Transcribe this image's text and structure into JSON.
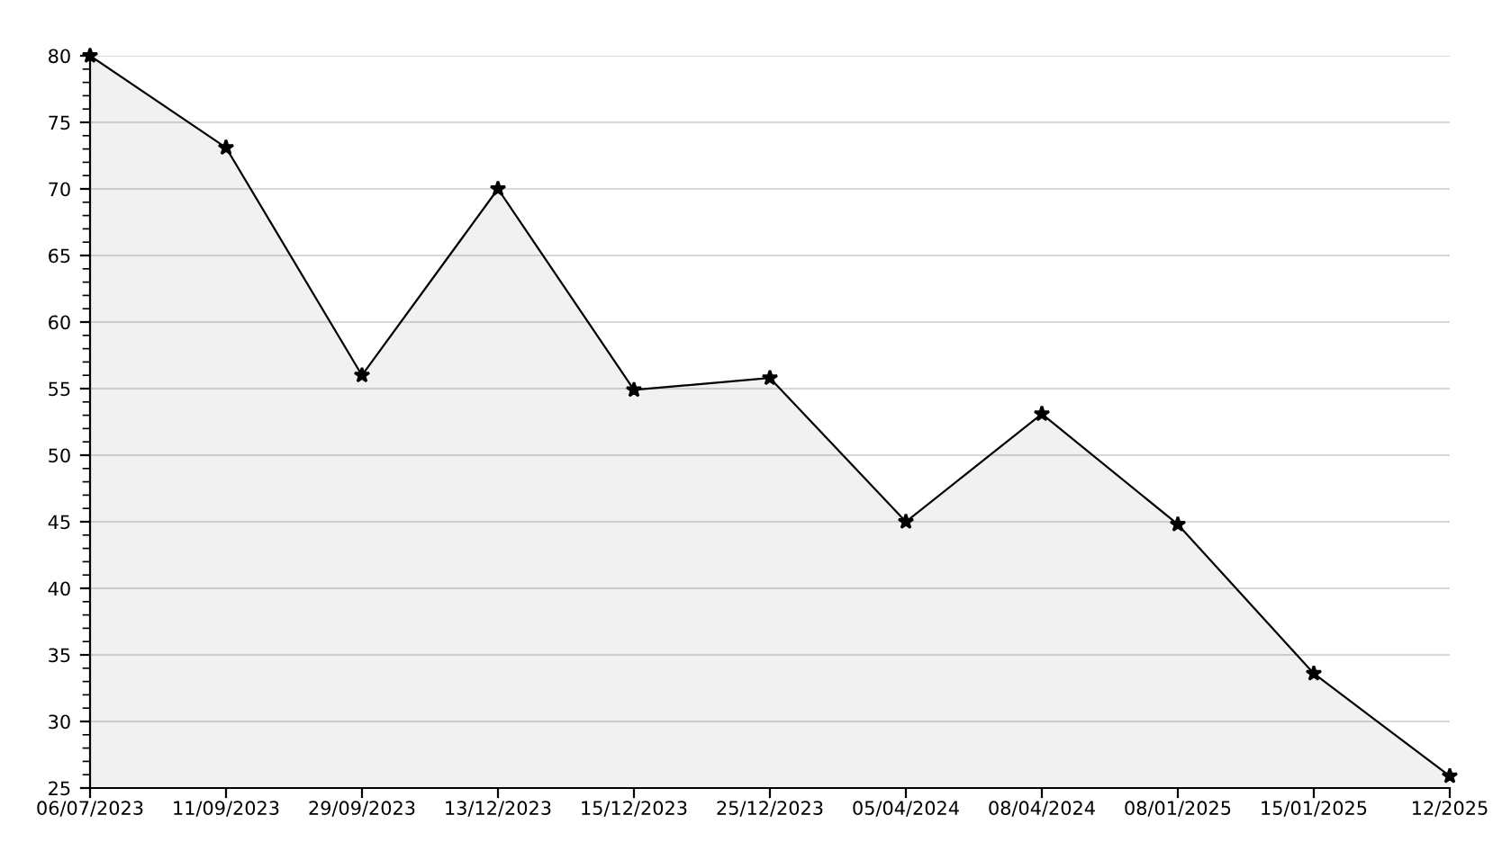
{
  "chart_data": {
    "type": "area",
    "categories": [
      "06/07/2023",
      "11/09/2023",
      "29/09/2023",
      "13/12/2023",
      "15/12/2023",
      "25/12/2023",
      "05/04/2024",
      "08/04/2024",
      "08/01/2025",
      "15/01/2025",
      "12/2025"
    ],
    "series": [
      {
        "color": "#000000",
        "values": [
          80,
          73.1,
          56,
          70,
          54.9,
          55.8,
          45,
          53.1,
          44.8,
          33.6,
          25.9
        ]
      }
    ],
    "ylim": [
      25,
      80
    ],
    "yticks": [
      25,
      30,
      35,
      40,
      45,
      50,
      55,
      60,
      65,
      70,
      75,
      80
    ],
    "grid": "y",
    "marker": "star",
    "line_style": "solid",
    "legend": false
  }
}
